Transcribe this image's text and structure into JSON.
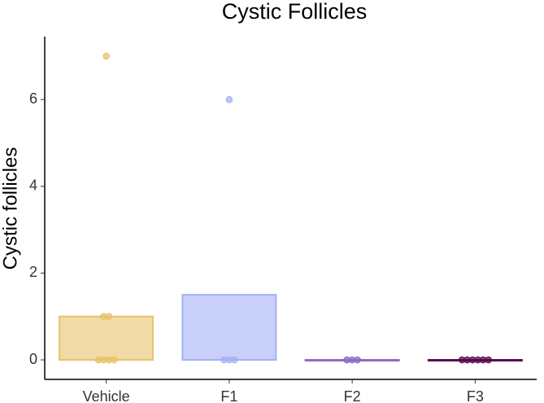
{
  "chart_data": {
    "type": "bar",
    "title": "Cystic Follicles",
    "y_label": "Cystic follicles",
    "categories": [
      "Vehicle",
      "F1",
      "F2",
      "F3"
    ],
    "values": [
      1,
      1.5,
      0,
      0
    ],
    "colors": [
      "#e8c26a",
      "#a4b0f5",
      "#8e6bbf",
      "#5a0a4f"
    ],
    "points": [
      [
        7,
        1,
        1,
        0,
        0,
        0,
        0
      ],
      [
        6,
        0,
        0,
        0
      ],
      [
        0,
        0,
        0
      ],
      [
        0,
        0,
        0,
        0,
        0,
        0
      ]
    ],
    "ylim": [
      -0.45,
      7.45
    ],
    "yticks": [
      0,
      2,
      4,
      6
    ]
  }
}
